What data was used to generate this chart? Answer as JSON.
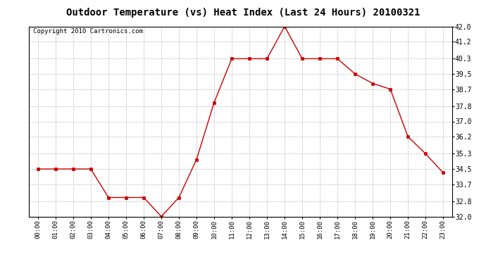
{
  "title": "Outdoor Temperature (vs) Heat Index (Last 24 Hours) 20100321",
  "copyright": "Copyright 2010 Cartronics.com",
  "hours": [
    "00:00",
    "01:00",
    "02:00",
    "03:00",
    "04:00",
    "05:00",
    "06:00",
    "07:00",
    "08:00",
    "09:00",
    "10:00",
    "11:00",
    "12:00",
    "13:00",
    "14:00",
    "15:00",
    "16:00",
    "17:00",
    "18:00",
    "19:00",
    "20:00",
    "21:00",
    "22:00",
    "23:00"
  ],
  "values": [
    34.5,
    34.5,
    34.5,
    34.5,
    33.0,
    33.0,
    33.0,
    32.0,
    33.0,
    35.0,
    38.0,
    40.3,
    40.3,
    40.3,
    42.0,
    40.3,
    40.3,
    40.3,
    39.5,
    39.0,
    38.7,
    36.2,
    35.3,
    34.3
  ],
  "line_color": "#cc0000",
  "marker": "s",
  "marker_color": "#cc0000",
  "marker_size": 3,
  "ylim": [
    32.0,
    42.0
  ],
  "yticks": [
    32.0,
    32.8,
    33.7,
    34.5,
    35.3,
    36.2,
    37.0,
    37.8,
    38.7,
    39.5,
    40.3,
    41.2,
    42.0
  ],
  "grid_color": "#bbbbbb",
  "bg_color": "#ffffff",
  "title_fontsize": 10,
  "copyright_fontsize": 6.5
}
